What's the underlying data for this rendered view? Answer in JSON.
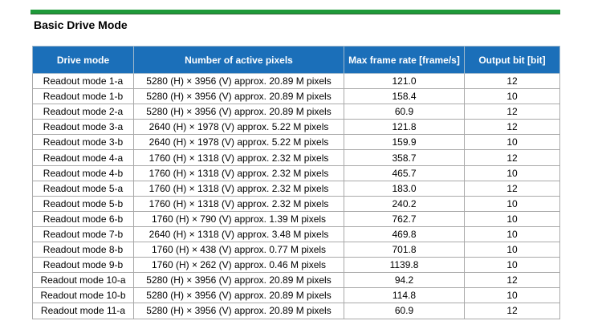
{
  "heading": "Basic Drive Mode",
  "table": {
    "headers": [
      "Drive mode",
      "Number of active pixels",
      "Max frame rate [frame/s]",
      "Output bit [bit]"
    ],
    "rows": [
      [
        "Readout mode 1-a",
        "5280 (H) × 3956 (V) approx. 20.89 M pixels",
        "121.0",
        "12"
      ],
      [
        "Readout mode 1-b",
        "5280 (H) × 3956 (V) approx. 20.89 M pixels",
        "158.4",
        "10"
      ],
      [
        "Readout mode 2-a",
        "5280 (H) × 3956 (V) approx. 20.89 M pixels",
        "60.9",
        "12"
      ],
      [
        "Readout mode 3-a",
        "2640 (H) × 1978 (V) approx. 5.22 M pixels",
        "121.8",
        "12"
      ],
      [
        "Readout mode 3-b",
        "2640 (H) × 1978 (V) approx. 5.22 M pixels",
        "159.9",
        "10"
      ],
      [
        "Readout mode 4-a",
        "1760 (H) × 1318 (V) approx. 2.32 M pixels",
        "358.7",
        "12"
      ],
      [
        "Readout mode 4-b",
        "1760 (H) × 1318 (V) approx. 2.32 M pixels",
        "465.7",
        "10"
      ],
      [
        "Readout mode 5-a",
        "1760 (H) × 1318 (V) approx. 2.32 M pixels",
        "183.0",
        "12"
      ],
      [
        "Readout mode 5-b",
        "1760 (H) × 1318 (V) approx. 2.32 M pixels",
        "240.2",
        "10"
      ],
      [
        "Readout mode 6-b",
        "1760 (H) × 790 (V) approx. 1.39 M pixels",
        "762.7",
        "10"
      ],
      [
        "Readout mode 7-b",
        "2640 (H) × 1318 (V) approx. 3.48 M pixels",
        "469.8",
        "10"
      ],
      [
        "Readout mode 8-b",
        "1760 (H) × 438 (V) approx. 0.77 M pixels",
        "701.8",
        "10"
      ],
      [
        "Readout mode 9-b",
        "1760 (H) × 262 (V) approx. 0.46 M pixels",
        "1139.8",
        "10"
      ],
      [
        "Readout mode 10-a",
        "5280 (H) × 3956 (V) approx. 20.89 M pixels",
        "94.2",
        "12"
      ],
      [
        "Readout mode 10-b",
        "5280 (H) × 3956 (V) approx. 20.89 M pixels",
        "114.8",
        "10"
      ],
      [
        "Readout mode 11-a",
        "5280 (H) × 3956 (V) approx. 20.89 M pixels",
        "60.9",
        "12"
      ]
    ]
  },
  "colors": {
    "header_bg": "#1b6fb9",
    "header_text": "#ffffff",
    "accent_rule": "#1f9a3a"
  }
}
